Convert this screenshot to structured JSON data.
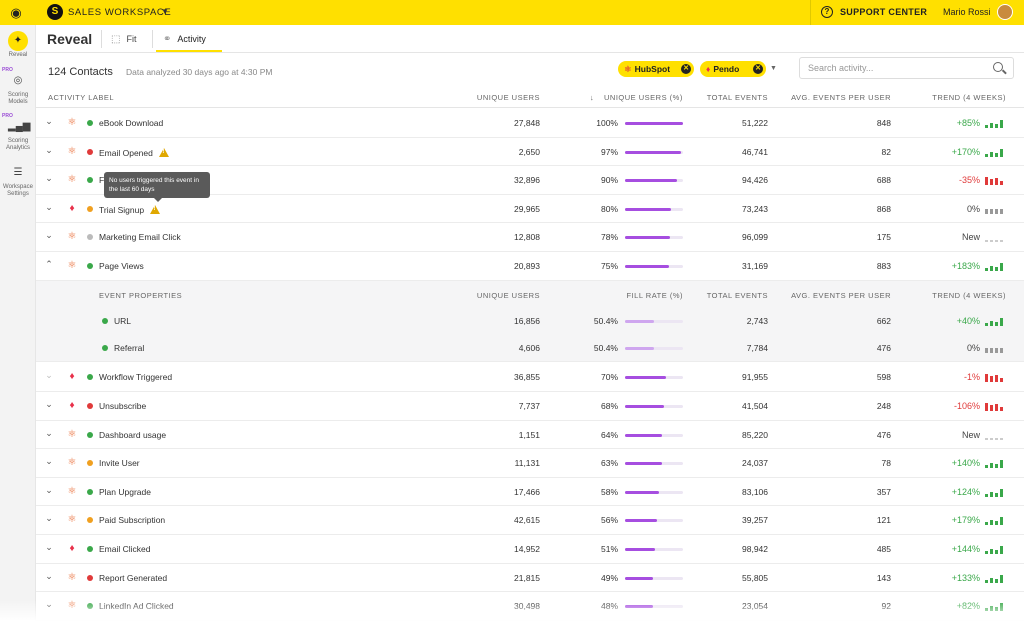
{
  "topbar": {
    "workspace_name": "SALES WORKSPACE",
    "support_label": "SUPPORT CENTER",
    "user_name": "Mario Rossi"
  },
  "rail": [
    {
      "label": "Reveal",
      "icon": "magic-wand-icon",
      "active": true,
      "pro": false
    },
    {
      "label": "Scoring Models",
      "icon": "target-icon",
      "active": false,
      "pro": true
    },
    {
      "label": "Scoring Analytics",
      "icon": "bar-chart-icon",
      "active": false,
      "pro": true
    },
    {
      "label": "Workspace Settings",
      "icon": "sliders-icon",
      "active": false,
      "pro": false
    }
  ],
  "rail_pro_badge": "PRO",
  "header": {
    "title": "Reveal",
    "tabs": [
      {
        "label": "Fit",
        "icon": "crop-icon"
      },
      {
        "label": "Activity",
        "icon": "link-icon",
        "active": true
      }
    ]
  },
  "summary": {
    "contacts": "124 Contacts",
    "analyzed": "Data analyzed 30 days ago at 4:30 PM"
  },
  "filters": [
    {
      "label": "HubSpot",
      "icon": "hubspot-icon"
    },
    {
      "label": "Pendo",
      "icon": "pendo-icon"
    }
  ],
  "search": {
    "placeholder": "Search activity..."
  },
  "columns": {
    "label": "ACTIVITY LABEL",
    "unique_users": "UNIQUE USERS",
    "unique_users_pct": "UNIQUE USERS (%)",
    "total_events": "TOTAL EVENTS",
    "avg_events": "AVG. EVENTS PER USER",
    "trend": "TREND (4 WEEKS)"
  },
  "sub_columns": {
    "label": "EVENT PROPERTIES",
    "unique_users": "UNIQUE USERS",
    "fill_rate": "FILL RATE (%)",
    "total_events": "TOTAL EVENTS",
    "avg_events": "AVG. EVENTS PER USER",
    "trend": "TREND (4 WEEKS)"
  },
  "tooltip": {
    "text": "No users triggered this event in the last 60 days"
  },
  "rows": [
    {
      "label": "eBook Download",
      "source": "hubspot",
      "dot": "#3aa84a",
      "users": "27,848",
      "pct": "100%",
      "pct_value": 1.0,
      "total": "51,222",
      "avg": "848",
      "trend": "+85%",
      "dir": "up",
      "warn": false
    },
    {
      "label": "Email Opened",
      "source": "hubspot",
      "dot": "#e03a3a",
      "users": "2,650",
      "pct": "97%",
      "pct_value": 0.97,
      "total": "46,741",
      "avg": "82",
      "trend": "+170%",
      "dir": "up",
      "warn": true
    },
    {
      "label": "F",
      "source": "hubspot",
      "dot": "#3aa84a",
      "users": "32,896",
      "pct": "90%",
      "pct_value": 0.9,
      "total": "94,426",
      "avg": "688",
      "trend": "-35%",
      "dir": "down",
      "warn": false
    },
    {
      "label": "Trial Signup",
      "source": "pendo",
      "dot": "#f0a020",
      "users": "29,965",
      "pct": "80%",
      "pct_value": 0.8,
      "total": "73,243",
      "avg": "868",
      "trend": "0%",
      "dir": "neutral",
      "warn": true
    },
    {
      "label": "Marketing Email Click",
      "source": "hubspot",
      "dot": "#bbbbbb",
      "users": "12,808",
      "pct": "78%",
      "pct_value": 0.78,
      "total": "96,099",
      "avg": "175",
      "trend": "New",
      "dir": "new",
      "warn": false
    },
    {
      "label": "Page Views",
      "source": "hubspot",
      "dot": "#3aa84a",
      "users": "20,893",
      "pct": "75%",
      "pct_value": 0.75,
      "total": "31,169",
      "avg": "883",
      "trend": "+183%",
      "dir": "up",
      "warn": false,
      "expanded": true
    }
  ],
  "sub_rows": [
    {
      "label": "URL",
      "users": "16,856",
      "pct": "50.4%",
      "pct_value": 0.504,
      "total": "2,743",
      "avg": "662",
      "trend": "+40%",
      "dir": "up"
    },
    {
      "label": "Referral",
      "users": "4,606",
      "pct": "50.4%",
      "pct_value": 0.504,
      "total": "7,784",
      "avg": "476",
      "trend": "0%",
      "dir": "neutral"
    }
  ],
  "rows2": [
    {
      "label": "Workflow Triggered",
      "source": "pendo",
      "dot": "#3aa84a",
      "users": "36,855",
      "pct": "70%",
      "pct_value": 0.7,
      "total": "91,955",
      "avg": "598",
      "trend": "-1%",
      "dir": "down",
      "dimchev": true
    },
    {
      "label": "Unsubscribe",
      "source": "pendo",
      "dot": "#e03a3a",
      "users": "7,737",
      "pct": "68%",
      "pct_value": 0.68,
      "total": "41,504",
      "avg": "248",
      "trend": "-106%",
      "dir": "down"
    },
    {
      "label": "Dashboard usage",
      "source": "hubspot",
      "dot": "#3aa84a",
      "users": "1,151",
      "pct": "64%",
      "pct_value": 0.64,
      "total": "85,220",
      "avg": "476",
      "trend": "New",
      "dir": "new"
    },
    {
      "label": "Invite User",
      "source": "hubspot",
      "dot": "#f0a020",
      "users": "11,131",
      "pct": "63%",
      "pct_value": 0.63,
      "total": "24,037",
      "avg": "78",
      "trend": "+140%",
      "dir": "up"
    },
    {
      "label": "Plan Upgrade",
      "source": "hubspot",
      "dot": "#3aa84a",
      "users": "17,466",
      "pct": "58%",
      "pct_value": 0.58,
      "total": "83,106",
      "avg": "357",
      "trend": "+124%",
      "dir": "up"
    },
    {
      "label": "Paid Subscription",
      "source": "hubspot",
      "dot": "#f0a020",
      "users": "42,615",
      "pct": "56%",
      "pct_value": 0.56,
      "total": "39,257",
      "avg": "121",
      "trend": "+179%",
      "dir": "up"
    },
    {
      "label": "Email Clicked",
      "source": "pendo",
      "dot": "#3aa84a",
      "users": "14,952",
      "pct": "51%",
      "pct_value": 0.51,
      "total": "98,942",
      "avg": "485",
      "trend": "+144%",
      "dir": "up"
    },
    {
      "label": "Report Generated",
      "source": "hubspot",
      "dot": "#e03a3a",
      "users": "21,815",
      "pct": "49%",
      "pct_value": 0.49,
      "total": "55,805",
      "avg": "143",
      "trend": "+133%",
      "dir": "up"
    },
    {
      "label": "LinkedIn Ad Clicked",
      "source": "hubspot",
      "dot": "#3aa84a",
      "users": "30,498",
      "pct": "48%",
      "pct_value": 0.48,
      "total": "23,054",
      "avg": "92",
      "trend": "+82%",
      "dir": "up"
    }
  ]
}
